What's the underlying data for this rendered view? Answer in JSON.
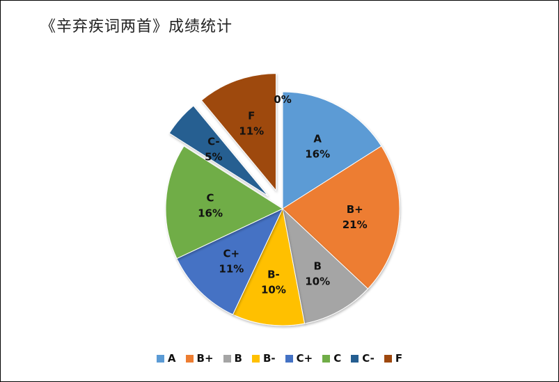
{
  "chart_data": {
    "type": "pie",
    "title": "《辛弃疾词两首》成绩统计",
    "categories": [
      "A",
      "B+",
      "B",
      "B-",
      "C+",
      "C",
      "C-",
      "F",
      "0%"
    ],
    "slices": [
      {
        "label": "A",
        "value": 16,
        "value_label": "16%",
        "color": "#5B9BD5",
        "exploded": false
      },
      {
        "label": "B+",
        "value": 21,
        "value_label": "21%",
        "color": "#ED7D31",
        "exploded": false
      },
      {
        "label": "B",
        "value": 10,
        "value_label": "10%",
        "color": "#A5A5A5",
        "exploded": false
      },
      {
        "label": "B-",
        "value": 10,
        "value_label": "10%",
        "color": "#FFC000",
        "exploded": false
      },
      {
        "label": "C+",
        "value": 11,
        "value_label": "11%",
        "color": "#4472C4",
        "exploded": false
      },
      {
        "label": "C",
        "value": 16,
        "value_label": "16%",
        "color": "#70AD47",
        "exploded": false
      },
      {
        "label": "C-",
        "value": 5,
        "value_label": "5%",
        "color": "#255E91",
        "exploded": true
      },
      {
        "label": "F",
        "value": 11,
        "value_label": "11%",
        "color": "#9E480E",
        "exploded": true
      }
    ],
    "extra_label": "0%",
    "legend_position": "bottom"
  },
  "legend": [
    {
      "label": "A",
      "color": "#5B9BD5"
    },
    {
      "label": "B+",
      "color": "#ED7D31"
    },
    {
      "label": "B",
      "color": "#A5A5A5"
    },
    {
      "label": "B-",
      "color": "#FFC000"
    },
    {
      "label": "C+",
      "color": "#4472C4"
    },
    {
      "label": "C",
      "color": "#70AD47"
    },
    {
      "label": "C-",
      "color": "#255E91"
    },
    {
      "label": "F",
      "color": "#9E480E"
    }
  ]
}
